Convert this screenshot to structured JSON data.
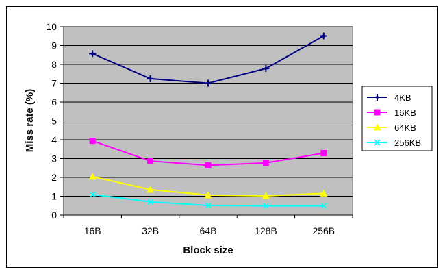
{
  "chart_data": {
    "type": "line",
    "categories": [
      "16B",
      "32B",
      "64B",
      "128B",
      "256B"
    ],
    "xlabel": "Block size",
    "ylabel": "Miss rate (%)",
    "ylim": [
      0,
      10
    ],
    "yticks": [
      "0",
      "1",
      "2",
      "3",
      "4",
      "5",
      "6",
      "7",
      "8",
      "9",
      "10"
    ],
    "grid": true,
    "legend_position": "right",
    "plot_background": "#c0c0c0",
    "series": [
      {
        "name": "4KB",
        "color": "#000080",
        "marker": "diamond",
        "values": [
          8.57,
          7.24,
          7.0,
          7.78,
          9.51
        ]
      },
      {
        "name": "16KB",
        "color": "#ff00ff",
        "marker": "square",
        "values": [
          3.94,
          2.87,
          2.64,
          2.77,
          3.29
        ]
      },
      {
        "name": "64KB",
        "color": "#ffff00",
        "marker": "triangle",
        "values": [
          2.04,
          1.35,
          1.06,
          1.02,
          1.15
        ]
      },
      {
        "name": "256KB",
        "color": "#00ffff",
        "marker": "x",
        "values": [
          1.09,
          0.7,
          0.51,
          0.49,
          0.49
        ]
      }
    ]
  }
}
